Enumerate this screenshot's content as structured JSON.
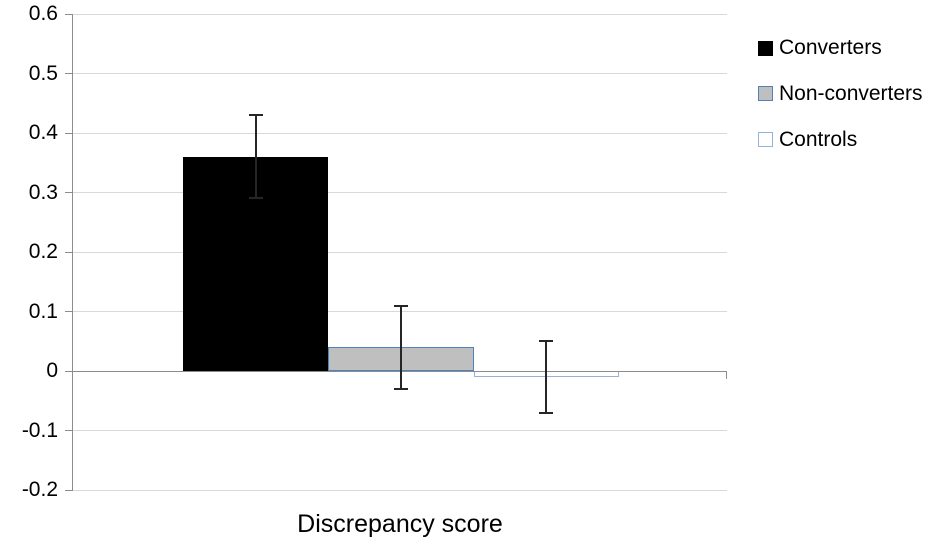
{
  "chart_data": {
    "type": "bar",
    "title": "",
    "xlabel": "Discrepancy score",
    "ylabel": "",
    "categories": [
      "Discrepancy score"
    ],
    "series": [
      {
        "name": "Converters",
        "values": [
          0.36
        ],
        "errors": [
          0.07
        ],
        "fill": "#000000",
        "border": "#000000"
      },
      {
        "name": "Non-converters",
        "values": [
          0.04
        ],
        "errors": [
          0.07
        ],
        "fill": "#BFBFBF",
        "border": "#4F81BD"
      },
      {
        "name": "Controls",
        "values": [
          -0.01
        ],
        "errors": [
          0.06
        ],
        "fill": "#FFFFFF",
        "border": "#95B3D7"
      }
    ],
    "ylim": [
      -0.2,
      0.6
    ],
    "yticks": [
      0.6,
      0.5,
      0.4,
      0.3,
      0.2,
      0.1,
      0,
      -0.1,
      -0.2
    ],
    "ytick_labels": [
      "0.6",
      "0.5",
      "0.4",
      "0.3",
      "0.2",
      "0.1",
      "0",
      "-0.1",
      "-0.2"
    ],
    "grid": true,
    "legend_position": "right"
  },
  "legend": {
    "items": [
      {
        "label": "Converters"
      },
      {
        "label": "Non-converters"
      },
      {
        "label": "Controls"
      }
    ]
  },
  "colors": {
    "background": "#FFFFFF",
    "gridline": "#D9D9D9",
    "axis": "#8C8C8C",
    "error_bar": "#262626",
    "text": "#000000"
  }
}
